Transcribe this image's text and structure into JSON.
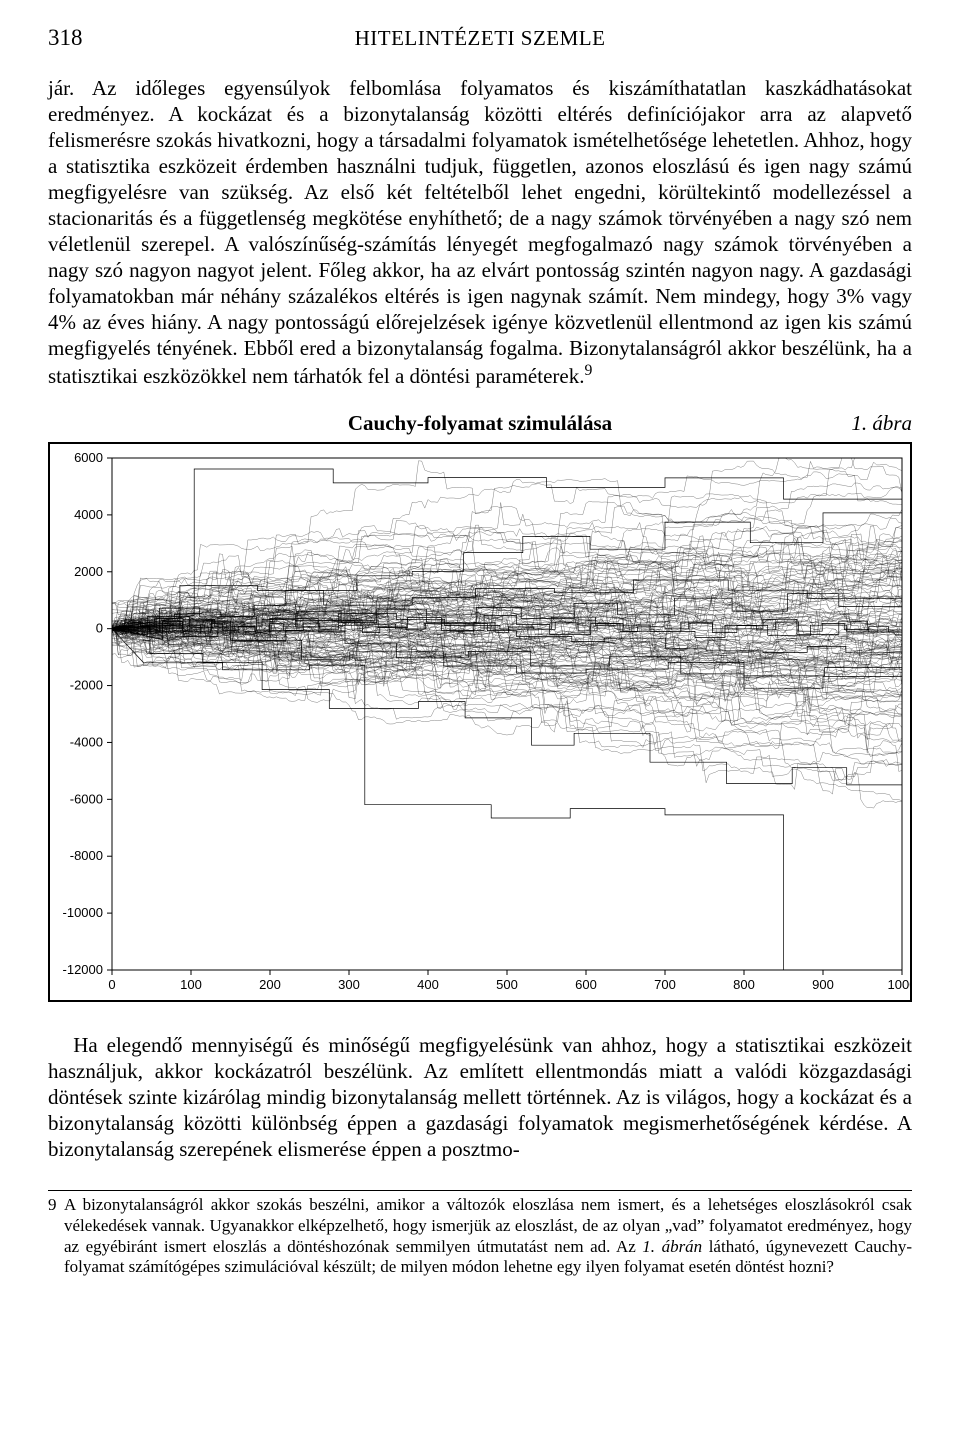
{
  "header": {
    "page_number": "318",
    "journal_title": "HITELINTÉZETI SZEMLE"
  },
  "paragraphs": {
    "p1": "jár. Az időleges egyensúlyok felbomlása folyamatos és kiszámíthatatlan kaszkádhatásokat eredményez. A kockázat és a bizonytalanság közötti eltérés definíciójakor arra az alapvető felismerésre szokás hivatkozni, hogy a társadalmi folyamatok ismételhetősége lehetetlen. Ahhoz, hogy a statisztika eszközeit érdemben használni tudjuk, független, azonos eloszlású és igen nagy számú megfigyelésre van szükség. Az első két feltételből lehet engedni, körültekintő modellezéssel a stacionaritás és a függetlenség megkötése enyhíthető; de a nagy számok törvényében a nagy szó nem véletlenül szerepel. A valószínűség-számítás lényegét megfogalmazó nagy számok törvényében a nagy szó nagyon nagyot jelent. Főleg akkor, ha az elvárt pontosság szintén nagyon nagy. A gazdasági folyamatokban már néhány százalékos eltérés is igen nagynak számít. Nem mindegy, hogy 3% vagy 4% az éves hiány. A nagy pontosságú előrejelzések igénye közvetlenül ellentmond az igen kis számú megfigyelés tényének. Ebből ered a bizonytalanság fogalma. Bizonytalanságról akkor beszélünk, ha a statisztikai eszközökkel nem tárhatók fel a döntési paraméterek.",
    "p1_sup": "9",
    "p2": "Ha elegendő mennyiségű és minőségű megfigyelésünk van ahhoz, hogy a statisztikai eszközeit használjuk, akkor kockázatról beszélünk. Az említett ellentmondás miatt a valódi közgazdasági döntések szinte kizárólag mindig bizonytalanság mellett történnek. Az is világos, hogy a kockázat és a bizonytalanság közötti különbség éppen a gazdasági folyamatok megismerhetőségének kérdése. A bizonytalanság szerepének elismerése éppen a posztmo-"
  },
  "figure": {
    "label": "1. ábra",
    "title": "Cauchy-folyamat szimulálása",
    "chart": {
      "type": "line-multi",
      "x": {
        "min": 0,
        "max": 1000,
        "tick_step": 100
      },
      "y": {
        "min": -12000,
        "max": 6000,
        "tick_step": 2000
      },
      "background_color": "#ffffff",
      "border_color": "#000000",
      "axis_fontsize": 13,
      "line_color": "#000000",
      "line_width": 0.7,
      "plotpaths": [
        "0,0 10,63 16,63 20,187 25,187 36,257 36,65 54,65 54,371 79,371 79,512 96,512 96,537 114,537 114,582 138,582 138,429 180,429 180,474 213,474 213,509 232,509 232,287 307,287 307,161 359,161 359,-5 397,-5 397,184 475,184 475,-69 512,-69 512,-274 582,-274 582,-452 623,-452 623,-334 701,-334 701,-710 752,-710 752,-777 824,-777 824,-836 880,-836 880,-623 929,-623 929,-849 1000,-849",
        "0,0 16,120 16,304 43,304 43,115 90,115 90,330 130,330 130,66 190,66 190,320 232,320 232,64 287,64 287,532 360,532 360,331 421,331 421,113 491,113 491,-14 556,-14 556,403 612,403 612,122 681,122 681,-97 738,-97 738,-311 776,-311 776,116 830,116 830,-234 884,-234 884,121 930,121 930,-117 1000,-117",
        "0,0 64,-381 64,272 150,272 150,-407 240,-407 240,-1103 301,-1103 301,-815 420,-815 420,-1314 512,-1314 512,-1559 600,-1559 600,-1422 704,-1422 704,-1186 800,-1186 800,-1660 902,-1660 902,-1367 1000,-1367",
        "0,0 86,124 86,1523 184,1523 184,1343 268,1343 268,828 380,828 380,1094 460,1094 460,1412 560,1412 560,1266 660,1266 660,1711 780,1711 780,1353 880,1353 880,1069 1000,1069",
        "0,0 48,230 48,-876 115,-876 115,-1184 190,-1184 190,-2139 275,-2139 275,-2802 388,-2802 388,-2560 447,-2560 447,-3138 531,-3138 531,-4096 585,-4096 585,-3679 681,-3679 681,-4695 778,-4695 778,-5448 861,-5448 861,-4887 930,-4887 930,-5493 1000,-5493",
        "0,0 40,-1199 140,-1199 140,-1447 250,-1447 250,-1280 320,-1280 320,-6187 480,-6187 480,-6655 580,-6655 580,-6326 700,-6326 700,-6547 850,-6547 850,-12396 1000,-12396",
        "0,0 60,172 60,721 111,721 111,416 180,416 180,823 220,823 220,1340 310,1340 310,1858 380,1858 380,2013 445,2013 445,2675 520,2675 520,3243 605,3243 605,2793 700,2793 700,3746 808,3746 808,3024 900,3024 900,4069 1000,4069",
        "0,0 104,466 104,5613 280,5613 280,5125 400,5125 400,5310 550,5310 550,4966 700,4966 700,5300 850,5300 850,4555 1000,4555",
        "0,0 21,-135 21,227 39,227 39,-117 64,-117 64,247 89,247 89,-84 126,-84 126,235 167,235 167,-112 200,-112 200,354 261,354 261,-118 295,-118 295,296 337,296 337,38 374,38 374,388 417,388 417,-64 471,-64 471,465 512,465 512,146 554,146 554,-201 606,-201 606,183 647,183 647,-93 720,-93 720,226 760,226 760,-6 824,-6 824,331 867,331 867,-200 920,-200 920,267 956,267 956,-47 1000,-47",
        "0,0 10,-16 10,74 23,74 23,-148 33,-148 33,91 47,91 47,-116 60,-116 60,168 77,168 77,-73 96,-73 96,119 112,119 112,-154 125,-154 125,182 140,182 140,-64 160,-64 160,83 181,83 181,-99 199,-199 199,174 217,174 217,-61 242,-61 242,196 263,196 263,-23 287,-23 287,120 317,120 317,-138 339,-138 339,61 372,61 372,-14 395,-14 395,193 428,193 428,-87 458,-87 458,204 485,204 485,-129 502,-129 502,57 534,57 534,-24 561,-24 561,226 590,226 590,-79 614,-79 614,180 643,180 643,-101 665,-101 665,66 700,66 700,-6 730,-6 730,191 760,191 760,-134 791,-134 791,103 816,103 816,-41 840,-41 840,234 869,234 869,-88 899,-88 899,184 927,184 927,-27 958,-27 958,69 983,69 983,-122 1000,-122",
        "0,0 45,-227 45,424 98,424 98,54 152,54 152,-435 220,-435 220,-78 295,-78 295,-512 360,-512 360,-1029 451,-1029 451,-800 530,-800 530,-1312 630,-1312 630,-971 720,-971 720,-1590 800,-1590 800,-2094 900,-2094 900,-1677 1000,-1677",
        "0,0 28,323 28,-179 56,-179 56,359 90,359 90,-276 134,-276 134,417 183,417 183,-58 234,-58 234,611 290,611 290,212 335,212 335,688 398,688 398,225 461,225 461,743 518,743 518,357 585,357 585,893 640,893 640,488 712,488 712,1071 785,1071 785,616 855,616 855,1231 920,1231 920,781 1000,781"
      ]
    }
  },
  "footnote": {
    "num": "9",
    "text_before_em": "A bizonytalanságról akkor szokás beszélni, amikor a változók eloszlása nem ismert, és a lehetséges eloszlásokról csak vélekedések vannak. Ugyanakkor elképzelhető, hogy ismerjük az eloszlást, de az olyan „vad” folyamatot eredményez, hogy az egyébiránt ismert eloszlás a döntéshozónak semmilyen útmutatást nem ad. Az ",
    "text_em": "1. ábrán",
    "text_after_em": " látható, úgynevezett Cauchy-folyamat számítógépes szimulációval készült; de milyen módon lehetne egy ilyen folyamat esetén döntést hozni?"
  }
}
